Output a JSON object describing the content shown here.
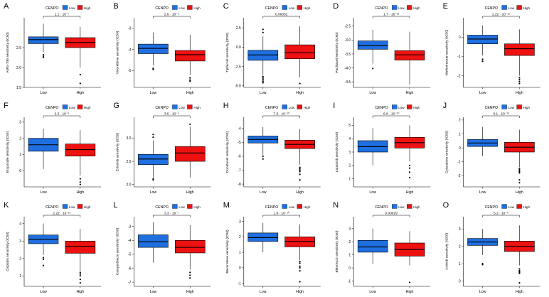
{
  "figure": {
    "legend_title": "CENPO",
    "categories": [
      "Low",
      "High"
    ]
  },
  "colors": {
    "low": "#1f6fe0",
    "high": "#ee1111",
    "axis": "#000000"
  },
  "chart_data": [
    {
      "letter": "A",
      "type": "box",
      "ylabel": "AMG-706 sensitivity (IC50)",
      "ylim": [
        1.5,
        3.25
      ],
      "ticks": [
        1.5,
        2.0,
        2.5
      ],
      "tick_labels": [
        "1.5",
        "2.0",
        "2.5"
      ],
      "pvalue": "1.1 · 10⁻⁷",
      "boxes": [
        {
          "group": "Low",
          "min": 2.38,
          "q1": 2.6,
          "median": 2.7,
          "q3": 2.77,
          "max": 3.1,
          "outliers": [
            2.25,
            2.28,
            2.32
          ]
        },
        {
          "group": "High",
          "min": 2.0,
          "q1": 2.5,
          "median": 2.63,
          "q3": 2.75,
          "max": 3.02,
          "outliers": [
            1.82,
            1.6
          ]
        }
      ]
    },
    {
      "letter": "B",
      "type": "box",
      "ylabel": "Vinorelbine sensitivity (IC50)",
      "ylim": [
        -5.8,
        -2.5
      ],
      "ticks": [
        -5,
        -4,
        -3
      ],
      "tick_labels": [
        "-5",
        "-4",
        "-3"
      ],
      "pvalue": "2.6 · 10⁻⁵",
      "boxes": [
        {
          "group": "Low",
          "min": -4.75,
          "q1": -4.2,
          "median": -3.95,
          "q3": -3.75,
          "max": -3.2,
          "outliers": [
            -4.9,
            -4.95
          ]
        },
        {
          "group": "High",
          "min": -5.2,
          "q1": -4.55,
          "median": -4.25,
          "q3": -4.05,
          "max": -3.3,
          "outliers": [
            -5.35,
            -5.45,
            -5.5
          ]
        }
      ]
    },
    {
      "letter": "C",
      "type": "box",
      "ylabel": "Tipifarnib sensitivity (IC50)",
      "ylim": [
        -5.2,
        3.8
      ],
      "ticks": [
        -5.0,
        -2.5,
        0.0,
        2.5
      ],
      "tick_labels": [
        "-5.0",
        "-2.5",
        "0.0",
        "2.5"
      ],
      "pvalue": "0.00032",
      "boxes": [
        {
          "group": "Low",
          "min": -3.6,
          "q1": -1.7,
          "median": -1.0,
          "q3": -0.4,
          "max": 1.4,
          "outliers": [
            -3.8,
            -4.0,
            -4.2,
            -4.4,
            -4.6,
            1.9,
            2.3
          ]
        },
        {
          "group": "High",
          "min": -3.9,
          "q1": -1.5,
          "median": -0.7,
          "q3": 0.3,
          "max": 2.7,
          "outliers": [
            -4.7
          ]
        }
      ]
    },
    {
      "letter": "D",
      "type": "box",
      "ylabel": "Paclitaxel sensitivity (IC50)",
      "ylim": [
        -4.7,
        -2.2
      ],
      "ticks": [
        -4.5,
        -4.0,
        -3.5,
        -3.0,
        -2.5
      ],
      "tick_labels": [
        "-4.5",
        "-4.0",
        "-3.5",
        "-3.0",
        "-2.5"
      ],
      "pvalue": "1.7 · 10⁻¹²",
      "boxes": [
        {
          "group": "Low",
          "min": -3.85,
          "q1": -3.33,
          "median": -3.2,
          "q3": -3.03,
          "max": -2.63,
          "outliers": [
            -4.02
          ]
        },
        {
          "group": "High",
          "min": -4.6,
          "q1": -3.72,
          "median": -3.53,
          "q3": -3.38,
          "max": -2.7,
          "outliers": []
        }
      ]
    },
    {
      "letter": "E",
      "type": "box",
      "ylabel": "Methotrexate sensitivity (IC50)",
      "ylim": [
        -2.6,
        1.0
      ],
      "ticks": [
        -2,
        -1,
        0
      ],
      "tick_labels": [
        "-2",
        "-1",
        "0"
      ],
      "pvalue": "2.22 · 10⁻¹⁶",
      "boxes": [
        {
          "group": "Low",
          "min": -0.95,
          "q1": -0.35,
          "median": -0.1,
          "q3": 0.1,
          "max": 0.6,
          "outliers": [
            -1.15,
            -1.25
          ]
        },
        {
          "group": "High",
          "min": -2.0,
          "q1": -0.95,
          "median": -0.6,
          "q3": -0.35,
          "max": 0.4,
          "outliers": [
            -2.1,
            -2.2,
            -2.3,
            -2.4
          ]
        }
      ]
    },
    {
      "letter": "F",
      "type": "box",
      "ylabel": "Etoposide sensitivity (IC50)",
      "ylim": [
        -1.0,
        3.3
      ],
      "ticks": [
        0,
        1,
        2,
        3
      ],
      "tick_labels": [
        "0",
        "1",
        "2",
        "3"
      ],
      "pvalue": "2.3 · 10⁻⁵",
      "boxes": [
        {
          "group": "Low",
          "min": 0.1,
          "q1": 1.2,
          "median": 1.6,
          "q3": 2.0,
          "max": 2.6,
          "outliers": []
        },
        {
          "group": "High",
          "min": -0.3,
          "q1": 0.9,
          "median": 1.3,
          "q3": 1.65,
          "max": 2.5,
          "outliers": [
            -0.5,
            -0.7,
            -0.85
          ]
        }
      ]
    },
    {
      "letter": "G",
      "type": "box",
      "ylabel": "Erlotinib sensitivity (IC50)",
      "ylim": [
        1.95,
        3.45
      ],
      "ticks": [
        2.0,
        2.5,
        3.0
      ],
      "tick_labels": [
        "2.0",
        "2.5",
        "3.0"
      ],
      "pvalue": "3.6 · 10⁻⁶",
      "boxes": [
        {
          "group": "Low",
          "min": 2.15,
          "q1": 2.43,
          "median": 2.55,
          "q3": 2.65,
          "max": 2.95,
          "outliers": [
            2.1,
            2.12,
            3.02,
            3.08
          ]
        },
        {
          "group": "High",
          "min": 2.15,
          "q1": 2.5,
          "median": 2.68,
          "q3": 2.82,
          "max": 3.25,
          "outliers": [
            3.3
          ]
        }
      ]
    },
    {
      "letter": "H",
      "type": "box",
      "ylabel": "Docetaxel sensitivity (IC50)",
      "ylim": [
        -8.2,
        -3.2
      ],
      "ticks": [
        -8,
        -7,
        -6,
        -5,
        -4
      ],
      "tick_labels": [
        "-8",
        "-7",
        "-6",
        "-5",
        "-4"
      ],
      "pvalue": "7.3 · 10⁻¹⁰",
      "boxes": [
        {
          "group": "Low",
          "min": -5.9,
          "q1": -5.05,
          "median": -4.8,
          "q3": -4.55,
          "max": -3.9,
          "outliers": [
            -6.0,
            -6.2
          ]
        },
        {
          "group": "High",
          "min": -6.6,
          "q1": -5.45,
          "median": -5.15,
          "q3": -4.85,
          "max": -4.05,
          "outliers": [
            -6.8,
            -6.9,
            -7.0,
            -7.1,
            -7.3,
            -7.7
          ]
        }
      ]
    },
    {
      "letter": "I",
      "type": "box",
      "ylabel": "Lapatinib sensitivity (IC50)",
      "ylim": [
        0.4,
        5.6
      ],
      "ticks": [
        1,
        2,
        3,
        4,
        5
      ],
      "tick_labels": [
        "1",
        "2",
        "3",
        "4",
        "5"
      ],
      "pvalue": "6.8 · 10⁻¹⁰",
      "boxes": [
        {
          "group": "Low",
          "min": 2.0,
          "q1": 3.0,
          "median": 3.4,
          "q3": 3.85,
          "max": 4.8,
          "outliers": []
        },
        {
          "group": "High",
          "min": 2.3,
          "q1": 3.3,
          "median": 3.7,
          "q3": 4.1,
          "max": 5.0,
          "outliers": [
            2.0,
            1.8,
            1.5,
            1.1
          ]
        }
      ]
    },
    {
      "letter": "J",
      "type": "box",
      "ylabel": "Cytarabine sensitivity (IC50)",
      "ylim": [
        -2.8,
        2.2
      ],
      "ticks": [
        -2,
        -1,
        0,
        1,
        2
      ],
      "tick_labels": [
        "-2",
        "-1",
        "0",
        "1",
        "2"
      ],
      "pvalue": "9.1 · 10⁻¹³",
      "boxes": [
        {
          "group": "Low",
          "min": -0.6,
          "q1": 0.1,
          "median": 0.35,
          "q3": 0.6,
          "max": 1.5,
          "outliers": []
        },
        {
          "group": "High",
          "min": -1.4,
          "q1": -0.3,
          "median": 0.05,
          "q3": 0.4,
          "max": 1.3,
          "outliers": [
            -1.5,
            -1.6,
            -1.7,
            -1.8,
            -2.3,
            -2.5
          ]
        }
      ]
    },
    {
      "letter": "K",
      "type": "box",
      "ylabel": "Cisplatin sensitivity (IC50)",
      "ylim": [
        0.4,
        4.4
      ],
      "ticks": [
        1,
        2,
        3,
        4
      ],
      "tick_labels": [
        "1",
        "2",
        "3",
        "4"
      ],
      "pvalue": "2.22 · 10⁻¹⁶",
      "boxes": [
        {
          "group": "Low",
          "min": 2.2,
          "q1": 2.85,
          "median": 3.1,
          "q3": 3.35,
          "max": 4.0,
          "outliers": [
            2.05,
            1.95,
            1.6
          ]
        },
        {
          "group": "High",
          "min": 1.3,
          "q1": 2.3,
          "median": 2.7,
          "q3": 3.0,
          "max": 3.7,
          "outliers": [
            1.2,
            1.1,
            1.0,
            0.8,
            0.6
          ]
        }
      ]
    },
    {
      "letter": "L",
      "type": "box",
      "ylabel": "Camptothecin sensitivity (IC50)",
      "ylim": [
        -7.3,
        -2.3
      ],
      "ticks": [
        -7,
        -6,
        -5,
        -4,
        -3
      ],
      "tick_labels": [
        "-7",
        "-6",
        "-5",
        "-4",
        "-3"
      ],
      "pvalue": "3.3 · 10⁻⁷",
      "boxes": [
        {
          "group": "Low",
          "min": -5.6,
          "q1": -4.5,
          "median": -4.1,
          "q3": -3.6,
          "max": -2.7,
          "outliers": []
        },
        {
          "group": "High",
          "min": -6.1,
          "q1": -4.9,
          "median": -4.5,
          "q3": -4.0,
          "max": -2.9,
          "outliers": [
            -6.3,
            -6.5,
            -6.7
          ]
        }
      ]
    },
    {
      "letter": "M",
      "type": "box",
      "ylabel": "Bexarotene sensitivity (IC50)",
      "ylim": [
        -1.2,
        3.3
      ],
      "ticks": [
        -1,
        0,
        1,
        2,
        3
      ],
      "tick_labels": [
        "-1",
        "0",
        "1",
        "2",
        "3"
      ],
      "pvalue": "1.9 · 10⁻¹⁰",
      "boxes": [
        {
          "group": "Low",
          "min": 1.0,
          "q1": 1.7,
          "median": 1.95,
          "q3": 2.25,
          "max": 2.9,
          "outliers": []
        },
        {
          "group": "High",
          "min": 0.5,
          "q1": 1.35,
          "median": 1.7,
          "q3": 2.0,
          "max": 2.8,
          "outliers": [
            0.4,
            0.3,
            0.1,
            0.0,
            -0.2,
            -0.9
          ]
        }
      ]
    },
    {
      "letter": "N",
      "type": "box",
      "ylabel": "Bleomycin sensitivity (IC50)",
      "ylim": [
        -1.4,
        3.9
      ],
      "ticks": [
        -1,
        0,
        1,
        2,
        3
      ],
      "tick_labels": [
        "-1",
        "0",
        "1",
        "2",
        "3"
      ],
      "pvalue": "0.00029",
      "boxes": [
        {
          "group": "Low",
          "min": 0.3,
          "q1": 1.2,
          "median": 1.6,
          "q3": 2.1,
          "max": 3.0,
          "outliers": []
        },
        {
          "group": "High",
          "min": 0.2,
          "q1": 0.9,
          "median": 1.4,
          "q3": 1.9,
          "max": 2.8,
          "outliers": [
            -1.1
          ]
        }
      ]
    },
    {
      "letter": "O",
      "type": "box",
      "ylabel": "Axitinib sensitivity (IC50)",
      "ylim": [
        -0.3,
        3.7
      ],
      "ticks": [
        0,
        1,
        2,
        3
      ],
      "tick_labels": [
        "0",
        "1",
        "2",
        "3"
      ],
      "pvalue": "5.2 · 10⁻⁹",
      "boxes": [
        {
          "group": "Low",
          "min": 1.5,
          "q1": 2.05,
          "median": 2.25,
          "q3": 2.45,
          "max": 3.0,
          "outliers": [
            1.0,
            0.95
          ]
        },
        {
          "group": "High",
          "min": 0.9,
          "q1": 1.7,
          "median": 2.0,
          "q3": 2.3,
          "max": 3.2,
          "outliers": [
            0.7,
            0.6,
            0.55,
            0.5,
            0.45,
            -0.1
          ]
        }
      ]
    }
  ]
}
